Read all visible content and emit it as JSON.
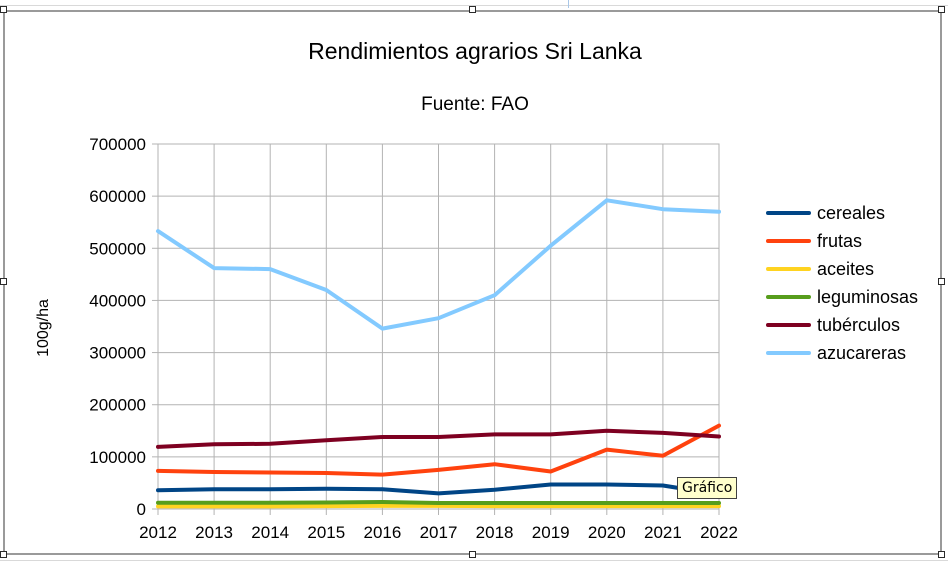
{
  "tooltip": {
    "label": "Gráfico"
  },
  "chart_data": {
    "type": "line",
    "title": "Rendimientos agrarios Sri Lanka",
    "subtitle": "Fuente: FAO",
    "xlabel": "",
    "ylabel": "100g/ha",
    "ylim": [
      0,
      700000
    ],
    "yticks": [
      0,
      100000,
      200000,
      300000,
      400000,
      500000,
      600000,
      700000
    ],
    "grid": true,
    "legend_position": "right",
    "categories": [
      "2012",
      "2013",
      "2014",
      "2015",
      "2016",
      "2017",
      "2018",
      "2019",
      "2020",
      "2021",
      "2022"
    ],
    "series": [
      {
        "name": "cereales",
        "color": "#004586",
        "values": [
          36000,
          38000,
          38000,
          39000,
          38000,
          30000,
          37000,
          47000,
          47000,
          45000,
          28000
        ]
      },
      {
        "name": "frutas",
        "color": "#ff420e",
        "values": [
          73000,
          71000,
          70000,
          69000,
          66000,
          75000,
          86000,
          72000,
          114000,
          102000,
          160000
        ]
      },
      {
        "name": "aceites",
        "color": "#ffd320",
        "values": [
          5000,
          5000,
          5000,
          5500,
          6000,
          6000,
          5500,
          5500,
          5500,
          5500,
          5500
        ]
      },
      {
        "name": "leguminosas",
        "color": "#579d1c",
        "values": [
          12000,
          12000,
          12000,
          12500,
          13500,
          11500,
          11500,
          11500,
          11500,
          11500,
          11500
        ]
      },
      {
        "name": "tubérculos",
        "color": "#7e0021",
        "values": [
          119000,
          124000,
          125000,
          132000,
          138000,
          138000,
          143000,
          143000,
          150000,
          146000,
          139000
        ]
      },
      {
        "name": "azucareras",
        "color": "#83caff",
        "values": [
          533000,
          462000,
          460000,
          420000,
          346000,
          366000,
          410000,
          505000,
          592000,
          575000,
          570000
        ]
      }
    ]
  }
}
